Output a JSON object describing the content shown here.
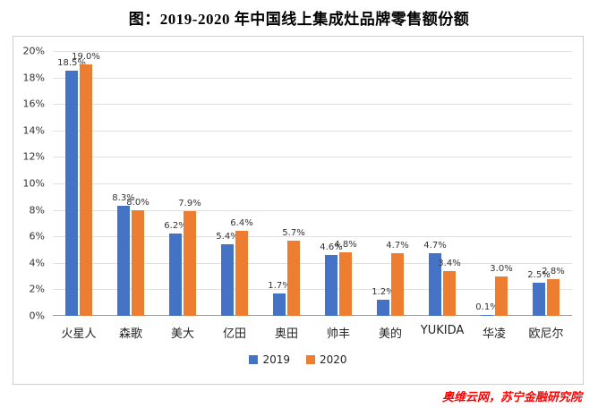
{
  "title": "图：2019-2020 年中国线上集成灶品牌零售额份额",
  "source": "奥维云网，苏宁金融研究院",
  "chart_data": {
    "type": "bar",
    "title": "图：2019-2020 年中国线上集成灶品牌零售额份额",
    "categories": [
      "火星人",
      "森歌",
      "美大",
      "亿田",
      "奥田",
      "帅丰",
      "美的",
      "YUKIDA",
      "华凌",
      "欧尼尔"
    ],
    "series": [
      {
        "name": "2019",
        "color": "#4472C4",
        "values": [
          18.5,
          8.3,
          6.2,
          5.4,
          1.7,
          4.6,
          1.2,
          4.7,
          0.1,
          2.5
        ]
      },
      {
        "name": "2020",
        "color": "#ED7D31",
        "values": [
          19.0,
          8.0,
          7.9,
          6.4,
          5.7,
          4.8,
          4.7,
          3.4,
          3.0,
          2.8
        ]
      }
    ],
    "xlabel": "",
    "ylabel": "",
    "ylim": [
      0,
      20
    ],
    "ytick_step": 2,
    "ytick_suffix": "%",
    "value_label_suffix": "%",
    "grid": true,
    "legend_position": "bottom"
  }
}
